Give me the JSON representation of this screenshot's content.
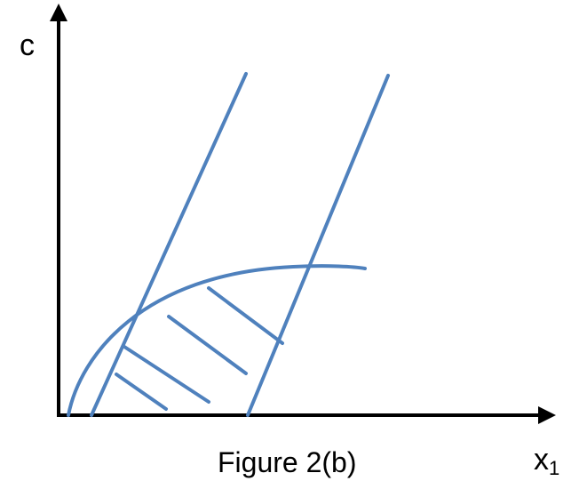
{
  "labels": {
    "y_axis": "c",
    "x_axis_base": "x",
    "x_axis_sub": "1",
    "caption": "Figure 2(b)"
  },
  "colors": {
    "axis": "#000000",
    "curve": "#4f81bd"
  }
}
